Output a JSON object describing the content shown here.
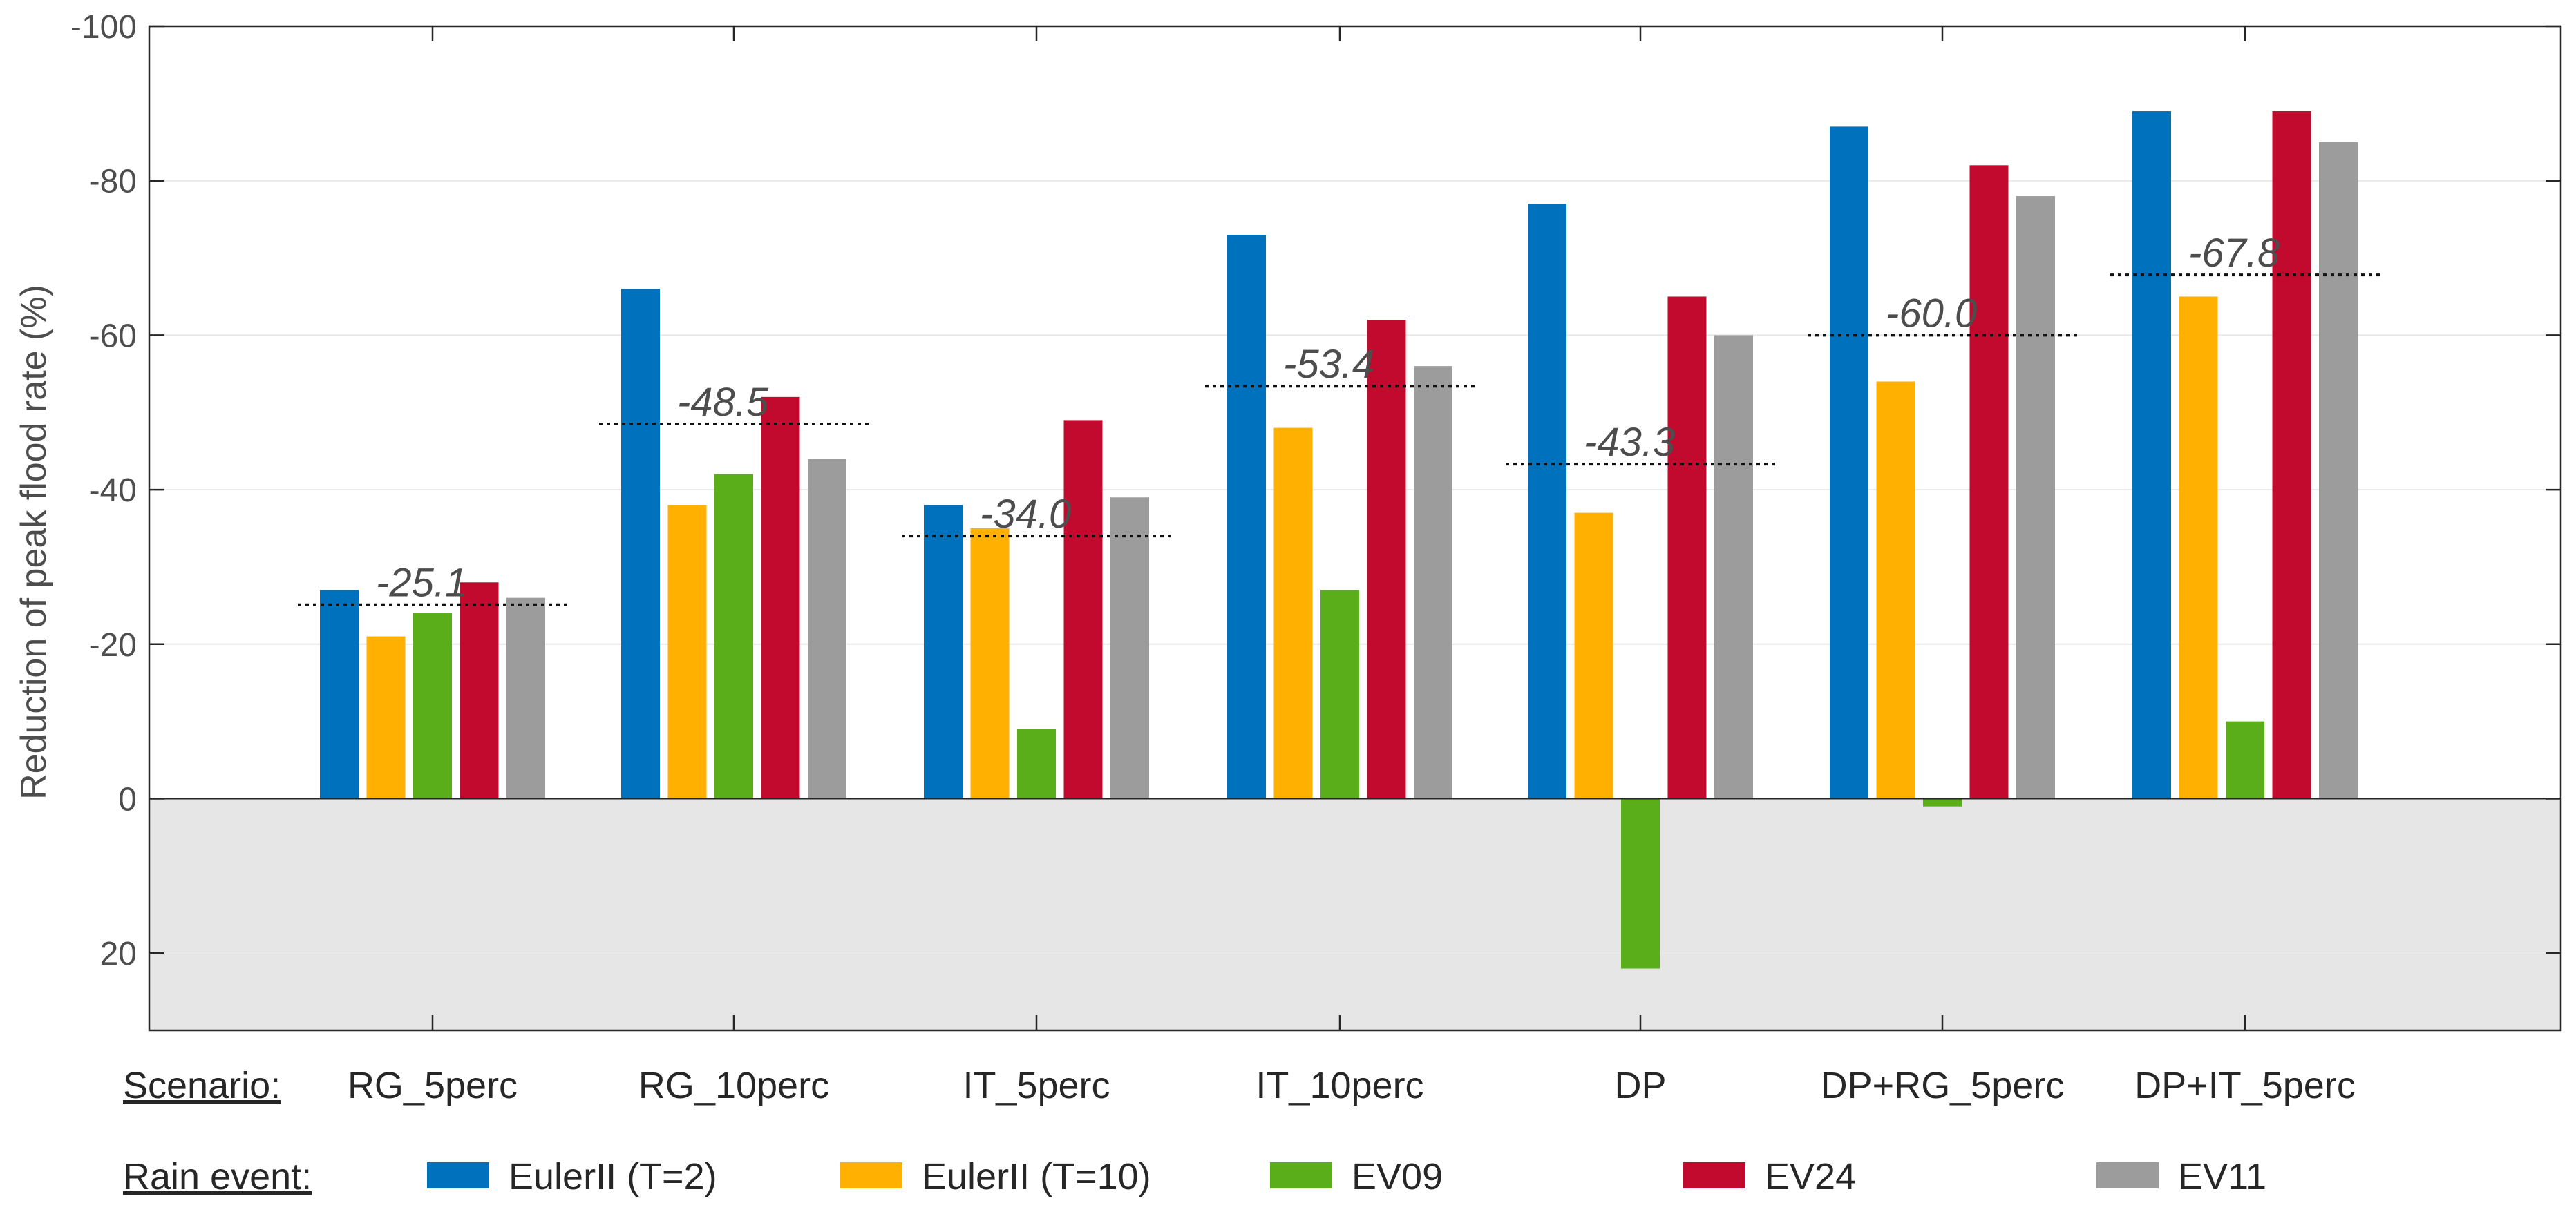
{
  "chart_data": {
    "type": "bar",
    "ylabel": "Reduction of peak flood rate (%)",
    "ylim": [
      -100,
      30
    ],
    "y_axis_reversed": true,
    "yticks": [
      -100,
      -80,
      -60,
      -40,
      -20,
      0,
      20
    ],
    "ytick_labels": [
      "-100",
      "-80",
      "-60",
      "-40",
      "-20",
      "0",
      "20"
    ],
    "grid": "horizontal",
    "shaded_region": {
      "from": 0,
      "to": 30,
      "color": "#e6e6e6"
    },
    "scenario_label": "Scenario:",
    "rain_event_label": "Rain event:",
    "categories": [
      "RG_5perc",
      "RG_10perc",
      "IT_5perc",
      "IT_10perc",
      "DP",
      "DP+RG_5perc",
      "DP+IT_5perc"
    ],
    "series": [
      {
        "name": "EulerII (T=2)",
        "color": "#0072BD",
        "values": [
          -27,
          -66,
          -38,
          -73,
          -77,
          -87,
          -89
        ]
      },
      {
        "name": "EulerII (T=10)",
        "color": "#FFB000",
        "values": [
          -21,
          -38,
          -35,
          -48,
          -37,
          -54,
          -65
        ]
      },
      {
        "name": "EV09",
        "color": "#59AE1A",
        "values": [
          -24,
          -42,
          -9,
          -27,
          22,
          1,
          -10
        ]
      },
      {
        "name": "EV24",
        "color": "#C10A2E",
        "values": [
          -28,
          -52,
          -49,
          -62,
          -65,
          -82,
          -89
        ]
      },
      {
        "name": "EV11",
        "color": "#9C9C9C",
        "values": [
          -26,
          -44,
          -39,
          -56,
          -60,
          -78,
          -85
        ]
      }
    ],
    "averages": [
      -25.1,
      -48.5,
      -34.0,
      -53.4,
      -43.3,
      -60.0,
      -67.8
    ],
    "average_labels": [
      "-25.1",
      "-48.5",
      "-34.0",
      "-53.4",
      "-43.3",
      "-60.0",
      "-67.8"
    ]
  }
}
